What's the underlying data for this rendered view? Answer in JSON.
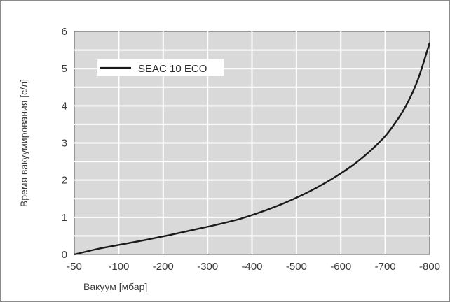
{
  "chart_data": {
    "type": "line",
    "xlabel": "Вакуум [мбар]",
    "ylabel": "Время вакуумирования [с/л]",
    "x_ticks": [
      "-50",
      "-100",
      "-200",
      "-300",
      "-400",
      "-500",
      "-600",
      "-700",
      "-800"
    ],
    "y_ticks": [
      "0",
      "1",
      "2",
      "3",
      "4",
      "5",
      "6"
    ],
    "xlim": [
      -50,
      -800
    ],
    "ylim": [
      0,
      6
    ],
    "grid": true,
    "legend_position": "top-left",
    "series": [
      {
        "name": "SEAC 10 ECO",
        "color": "#1a1a1a",
        "x": [
          -50,
          -100,
          -150,
          -200,
          -250,
          -300,
          -350,
          -400,
          -450,
          -500,
          -550,
          -600,
          -650,
          -700,
          -725,
          -750,
          -775,
          -800
        ],
        "y": [
          0,
          0.15,
          0.27,
          0.39,
          0.52,
          0.66,
          0.8,
          0.96,
          1.17,
          1.42,
          1.72,
          2.08,
          2.52,
          3.1,
          3.5,
          4.0,
          4.7,
          5.7
        ]
      }
    ]
  }
}
